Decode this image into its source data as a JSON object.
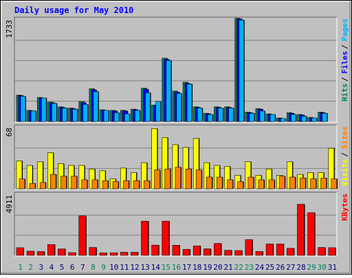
{
  "colors": {
    "frame_bg": "#c0c0c0",
    "plot_bg": "#c0c0c0",
    "title": "#0000ff",
    "hits": "#00805c",
    "files": "#0000ff",
    "pages": "#00b0ff",
    "visits": "#ffff00",
    "sites": "#ff8000",
    "kbytes": "#ff0000",
    "weekend_label": "#00805c",
    "weekday_label": "#000080",
    "grid": "#808080"
  },
  "chart_data": {
    "type": "bar",
    "title": "Daily usage for May 2010",
    "categories": [
      "1",
      "2",
      "3",
      "4",
      "5",
      "6",
      "7",
      "8",
      "9",
      "10",
      "11",
      "12",
      "13",
      "14",
      "15",
      "16",
      "17",
      "18",
      "19",
      "20",
      "21",
      "22",
      "23",
      "24",
      "25",
      "26",
      "27",
      "28",
      "29",
      "30",
      "31"
    ],
    "weekend_days": [
      "1",
      "2",
      "8",
      "9",
      "15",
      "16",
      "22",
      "23",
      "29",
      "30"
    ],
    "panels": [
      {
        "name": "usage",
        "ymax_label": "1733",
        "ylim": [
          0,
          1733
        ],
        "legend": [
          {
            "label": "Hits",
            "color_key": "hits"
          },
          {
            "label": "Files",
            "color_key": "files"
          },
          {
            "label": "Pages",
            "color_key": "pages"
          }
        ],
        "series": [
          {
            "name": "Hits",
            "values": [
              450,
              190,
              410,
              330,
              250,
              230,
              340,
              560,
              200,
              190,
              190,
              210,
              570,
              280,
              1080,
              520,
              670,
              250,
              140,
              250,
              250,
              1760,
              160,
              220,
              130,
              60,
              150,
              120,
              70,
              160,
              0
            ]
          },
          {
            "name": "Files",
            "values": [
              440,
              180,
              400,
              320,
              240,
              220,
              320,
              540,
              190,
              180,
              180,
              200,
              550,
              270,
              1060,
              500,
              650,
              240,
              130,
              240,
              240,
              1750,
              150,
              210,
              120,
              50,
              140,
              110,
              60,
              150,
              0
            ]
          },
          {
            "name": "Pages",
            "values": [
              430,
              180,
              400,
              310,
              230,
              210,
              290,
              510,
              190,
              150,
              130,
              190,
              490,
              340,
              1040,
              480,
              640,
              230,
              120,
              230,
              230,
              1730,
              140,
              180,
              120,
              50,
              120,
              90,
              60,
              140,
              0
            ]
          }
        ]
      },
      {
        "name": "visits",
        "ymax_label": "68",
        "ylim": [
          0,
          68
        ],
        "legend": [
          {
            "label": "Visits",
            "color_key": "visits"
          },
          {
            "label": "Sites",
            "color_key": "sites"
          }
        ],
        "series": [
          {
            "name": "Visits",
            "values": [
              31,
              26,
              30,
              40,
              28,
              26,
              26,
              22,
              20,
              11,
              23,
              18,
              29,
              67,
              57,
              49,
              46,
              56,
              29,
              26,
              25,
              15,
              30,
              15,
              22,
              15,
              30,
              16,
              18,
              18,
              45
            ]
          },
          {
            "name": "Sites",
            "values": [
              11,
              6,
              7,
              16,
              14,
              14,
              10,
              10,
              9,
              8,
              9,
              9,
              9,
              21,
              22,
              24,
              22,
              21,
              13,
              13,
              10,
              8,
              13,
              10,
              10,
              14,
              13,
              12,
              11,
              12,
              11
            ]
          }
        ]
      },
      {
        "name": "kbytes",
        "ymax_label": "4911",
        "ylim": [
          0,
          4911
        ],
        "legend": [
          {
            "label": "KBytes",
            "color_key": "kbytes"
          }
        ],
        "series": [
          {
            "name": "KBytes",
            "values": [
              620,
              340,
              310,
              880,
              520,
              220,
              3210,
              640,
              200,
              210,
              250,
              250,
              2780,
              830,
              2780,
              820,
              490,
              770,
              530,
              970,
              410,
              390,
              1280,
              310,
              920,
              920,
              570,
              4150,
              3470,
              640,
              620
            ]
          }
        ]
      }
    ]
  }
}
